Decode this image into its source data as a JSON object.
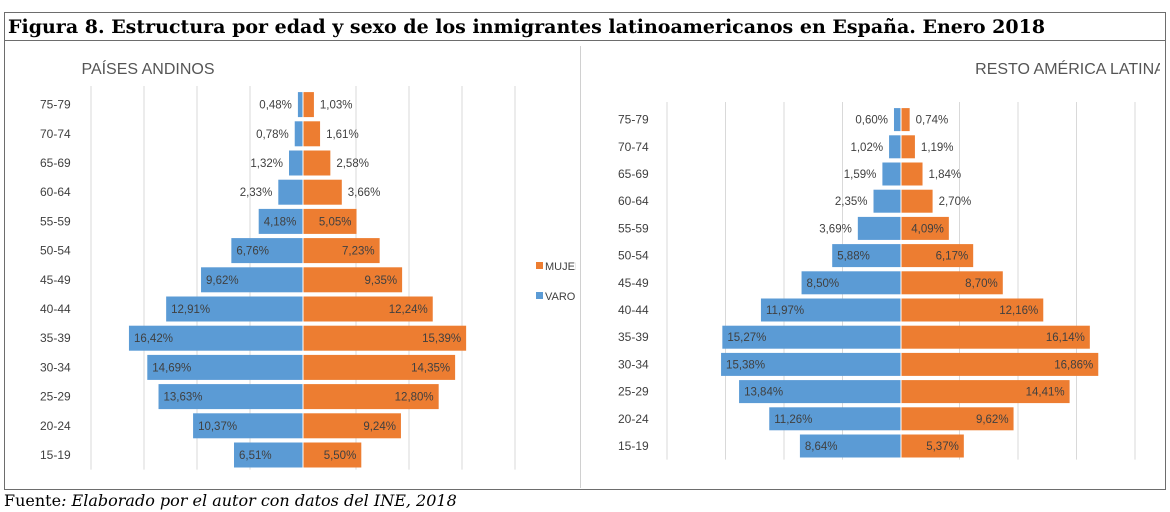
{
  "title": "Figura 8. Estructura por edad y sexo de los inmigrantes latinoamericanos  en España. Enero 2018",
  "source": {
    "prefix": "Fuente",
    "text": ": Elaborado por el autor con datos del INE, 2018"
  },
  "colors": {
    "men": "#5b9bd5",
    "women": "#ed7d31",
    "grid": "#d9d9d9",
    "border": "#6d6d6d"
  },
  "chart_data": [
    {
      "type": "bar",
      "orientation": "horizontal",
      "subtype": "population-pyramid",
      "title": "PAÍSES ANDINOS",
      "categories": [
        "75-79",
        "70-74",
        "65-69",
        "60-64",
        "55-59",
        "50-54",
        "45-49",
        "40-44",
        "35-39",
        "30-34",
        "25-29",
        "20-24",
        "15-19"
      ],
      "series": [
        {
          "name": "VARONES",
          "color": "#5b9bd5",
          "side": "left",
          "values": [
            0.48,
            0.78,
            1.32,
            2.33,
            4.18,
            6.76,
            9.62,
            12.91,
            16.42,
            14.69,
            13.63,
            10.37,
            6.51
          ],
          "labels": [
            "0,48%",
            "0,78%",
            "1,32%",
            "2,33%",
            "4,18%",
            "6,76%",
            "9,62%",
            "12,91%",
            "16,42%",
            "14,69%",
            "13,63%",
            "10,37%",
            "6,51%"
          ]
        },
        {
          "name": "MUJERES",
          "color": "#ed7d31",
          "side": "right",
          "values": [
            1.03,
            1.61,
            2.58,
            3.66,
            5.05,
            7.23,
            9.35,
            12.24,
            15.39,
            14.35,
            12.8,
            9.24,
            5.5
          ],
          "labels": [
            "1,03%",
            "1,61%",
            "2,58%",
            "3,66%",
            "5,05%",
            "7,23%",
            "9,35%",
            "12,24%",
            "15,39%",
            "14,35%",
            "12,80%",
            "9,24%",
            "5,50%"
          ]
        }
      ],
      "xlim": [
        -20,
        20
      ],
      "grid": true,
      "legend": "right",
      "legend_items": [
        "MUJERES",
        "VARONES"
      ]
    },
    {
      "type": "bar",
      "orientation": "horizontal",
      "subtype": "population-pyramid",
      "title": "RESTO AMÉRICA LATINA",
      "categories": [
        "75-79",
        "70-74",
        "65-69",
        "60-64",
        "55-59",
        "50-54",
        "45-49",
        "40-44",
        "35-39",
        "30-34",
        "25-29",
        "20-24",
        "15-19"
      ],
      "series": [
        {
          "name": "VARONES",
          "color": "#5b9bd5",
          "side": "left",
          "values": [
            0.6,
            1.02,
            1.59,
            2.35,
            3.69,
            5.88,
            8.5,
            11.97,
            15.27,
            15.38,
            13.84,
            11.26,
            8.64
          ],
          "labels": [
            "0,60%",
            "1,02%",
            "1,59%",
            "2,35%",
            "3,69%",
            "5,88%",
            "8,50%",
            "11,97%",
            "15,27%",
            "15,38%",
            "13,84%",
            "11,26%",
            "8,64%"
          ]
        },
        {
          "name": "MUJERES",
          "color": "#ed7d31",
          "side": "right",
          "values": [
            0.74,
            1.19,
            1.84,
            2.7,
            4.09,
            6.17,
            8.7,
            12.16,
            16.14,
            16.86,
            14.41,
            9.62,
            5.37
          ],
          "labels": [
            "0,74%",
            "1,19%",
            "1,84%",
            "2,70%",
            "4,09%",
            "6,17%",
            "8,70%",
            "12,16%",
            "16,14%",
            "16,86%",
            "14,41%",
            "9,62%",
            "5,37%"
          ]
        }
      ],
      "xlim": [
        -20,
        20
      ],
      "grid": true,
      "legend": "none"
    }
  ]
}
